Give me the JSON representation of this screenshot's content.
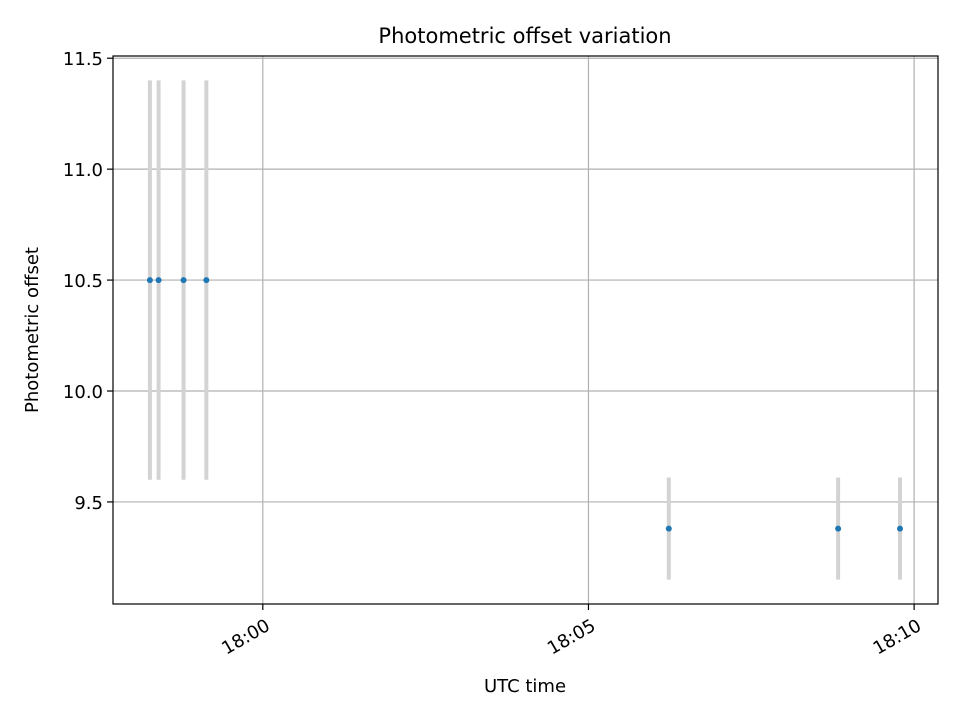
{
  "chart_data": {
    "type": "scatter",
    "title": "Photometric offset variation",
    "xlabel": "UTC time",
    "ylabel": "Photometric offset",
    "x_axis_kind": "time",
    "xlim": [
      "17:57:42",
      "18:10:22"
    ],
    "ylim": [
      9.04,
      11.51
    ],
    "grid": true,
    "x_ticks": [
      {
        "value": "18:00:00",
        "label": "18:00"
      },
      {
        "value": "18:05:00",
        "label": "18:05"
      },
      {
        "value": "18:10:00",
        "label": "18:10"
      }
    ],
    "y_ticks": [
      {
        "value": 9.5,
        "label": "9.5"
      },
      {
        "value": 10.0,
        "label": "10.0"
      },
      {
        "value": 10.5,
        "label": "10.5"
      },
      {
        "value": 11.0,
        "label": "11.0"
      },
      {
        "value": 11.5,
        "label": "11.5"
      }
    ],
    "series": [
      {
        "x": [
          "17:58:16",
          "17:58:24",
          "17:58:47",
          "17:59:08",
          "18:06:14",
          "18:08:50",
          "18:09:47"
        ],
        "y": [
          10.5,
          10.5,
          10.5,
          10.5,
          9.38,
          9.38,
          9.38
        ],
        "yerr": [
          0.9,
          0.9,
          0.9,
          0.9,
          0.23,
          0.23,
          0.23
        ]
      }
    ],
    "colors": {
      "marker": "#1f77b4",
      "errorbar": "#d3d3d3",
      "grid": "#b0b0b0",
      "axes": "#000000"
    }
  }
}
